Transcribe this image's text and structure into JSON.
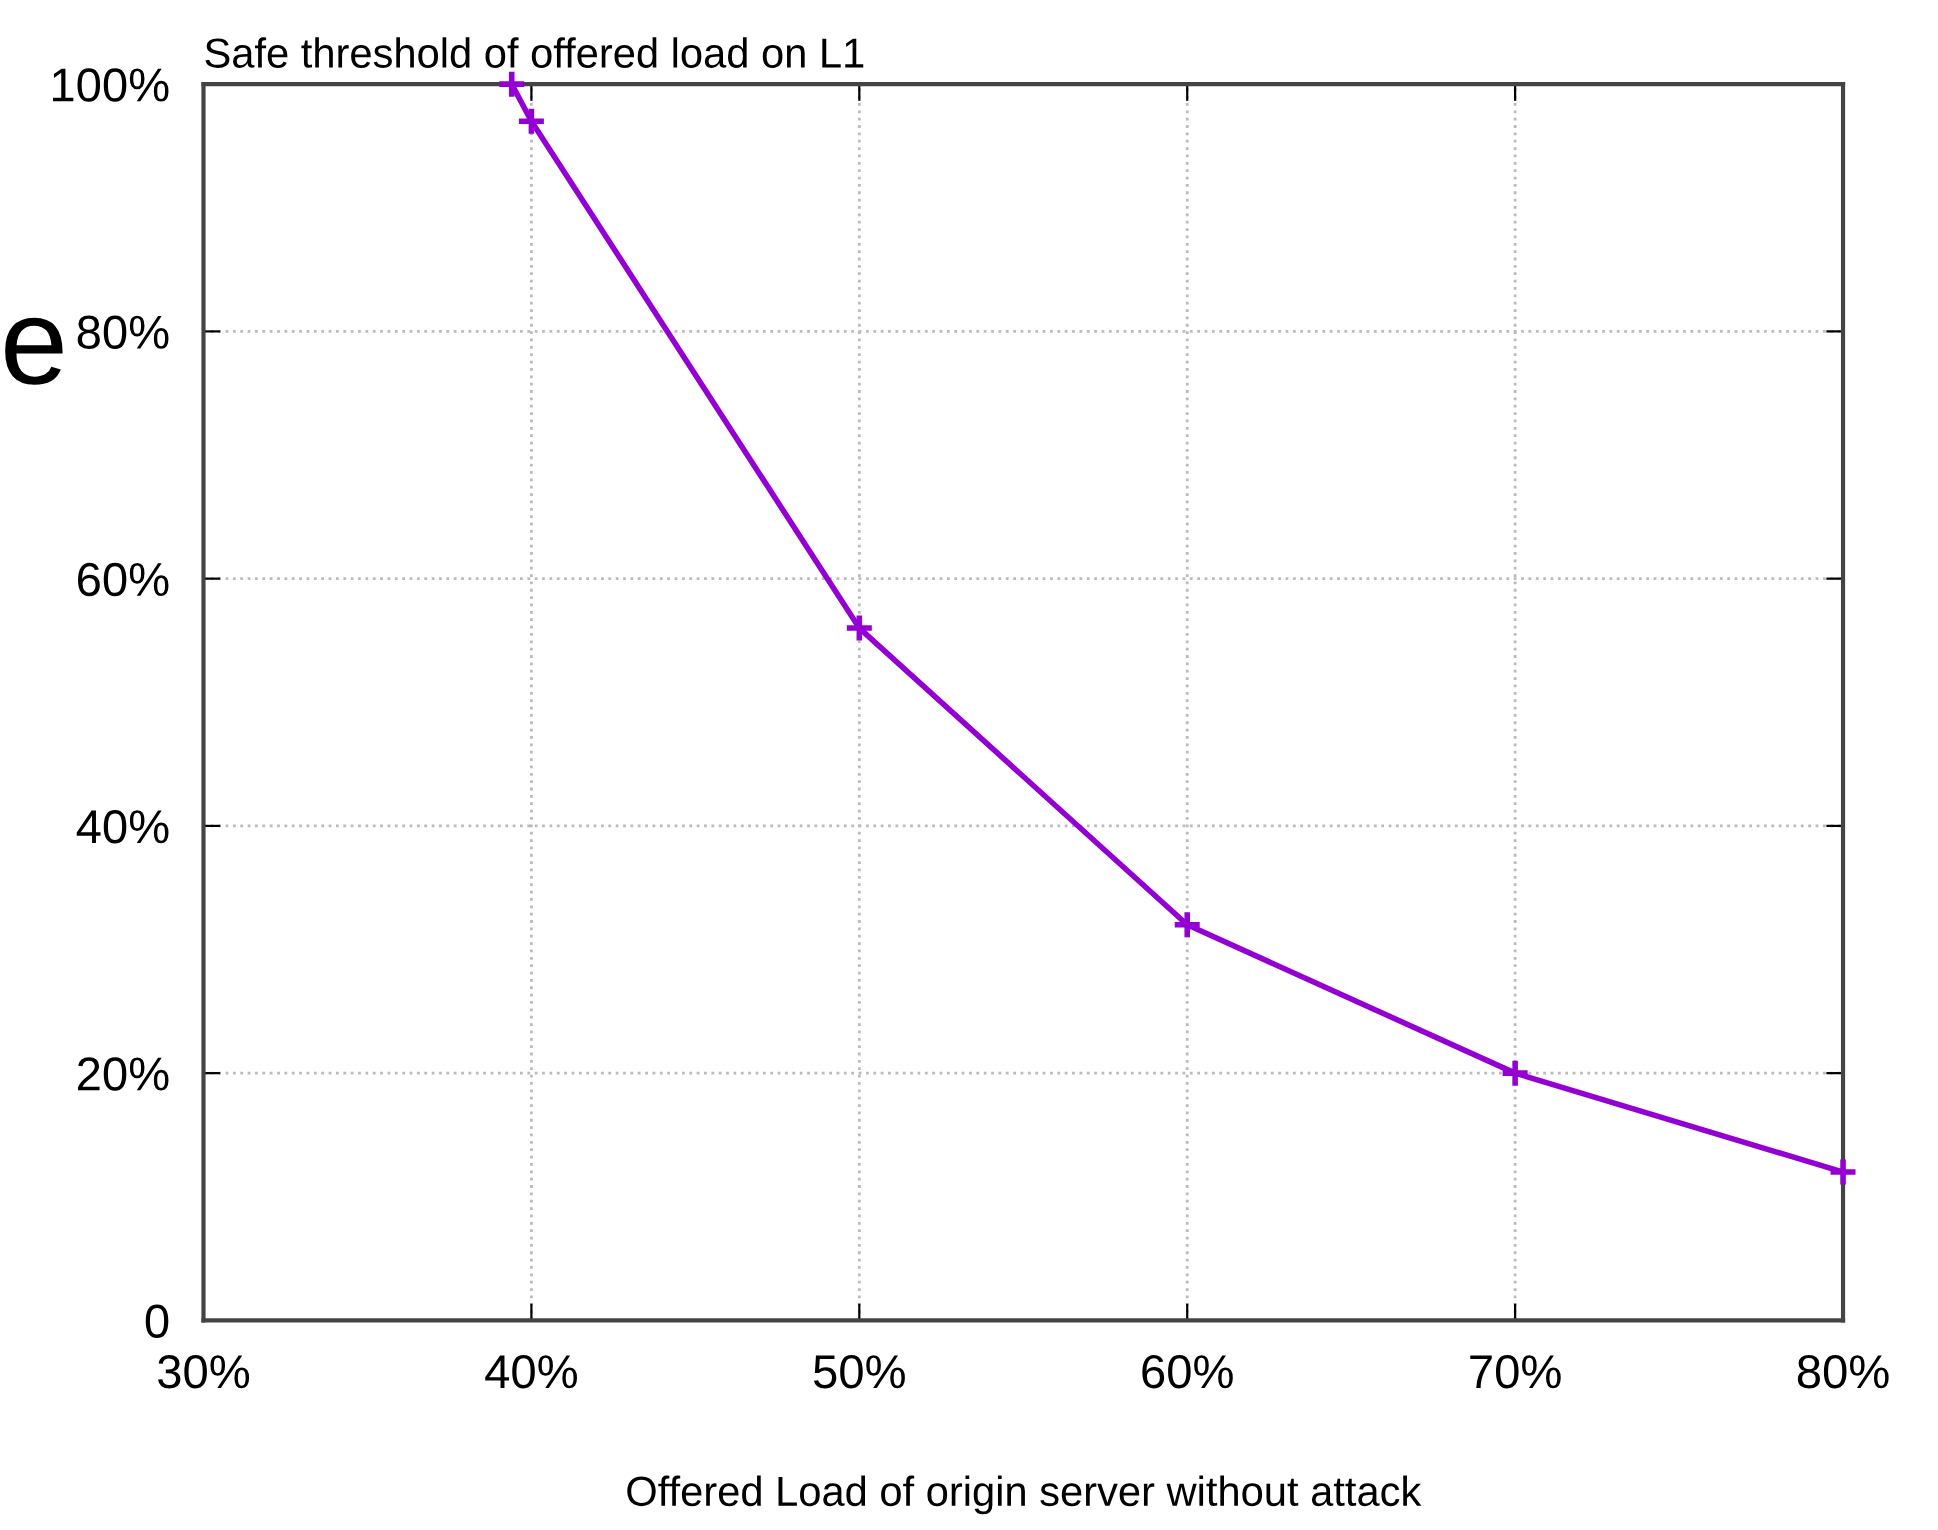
{
  "chart_data": {
    "type": "line",
    "title": "Safe threshold of offered load on L1",
    "xlabel": "Offered Load of origin server without attack",
    "annotations": [
      "e"
    ],
    "x": [
      39.4,
      40,
      50,
      60,
      70,
      80
    ],
    "series": [
      {
        "color": "#9400d3",
        "values": [
          100,
          97,
          56,
          32,
          20,
          12
        ]
      }
    ],
    "xlim": [
      30,
      80
    ],
    "ylim": [
      0,
      100
    ],
    "xticks": [
      {
        "value": 30,
        "label": "30%"
      },
      {
        "value": 40,
        "label": "40%"
      },
      {
        "value": 50,
        "label": "50%"
      },
      {
        "value": 60,
        "label": "60%"
      },
      {
        "value": 70,
        "label": "70%"
      },
      {
        "value": 80,
        "label": "80%"
      }
    ],
    "yticks": [
      0,
      {
        "value": 20,
        "label": "20%"
      },
      {
        "value": 40,
        "label": "40%"
      },
      {
        "value": 60,
        "label": "60%"
      },
      {
        "value": 80,
        "label": "80%"
      },
      {
        "value": 100,
        "label": "100%"
      }
    ],
    "grid": true,
    "marker": "cross",
    "line_style": "solid",
    "legend": false
  }
}
